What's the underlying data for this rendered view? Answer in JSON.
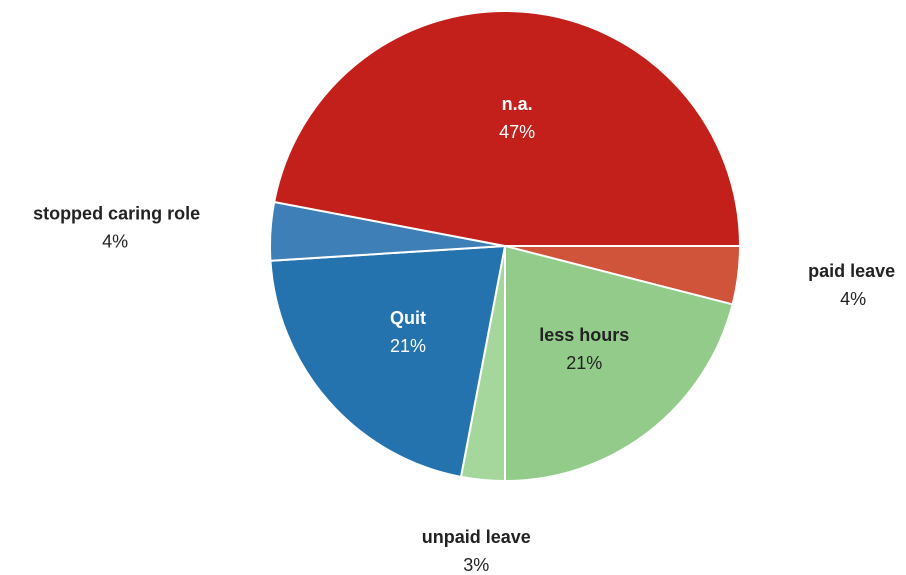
{
  "chart_data": {
    "type": "pie",
    "categories": [
      "paid leave",
      "less hours",
      "unpaid leave",
      "Quit",
      "stopped caring role",
      "n.a."
    ],
    "values": [
      4,
      21,
      3,
      21,
      4,
      47
    ],
    "value_labels": [
      "4%",
      "21%",
      "3%",
      "21%",
      "4%",
      "47%"
    ],
    "colors": [
      "#d0543a",
      "#93cc8a",
      "#a5d69c",
      "#2473ae",
      "#3f7fb8",
      "#c4201b"
    ]
  }
}
